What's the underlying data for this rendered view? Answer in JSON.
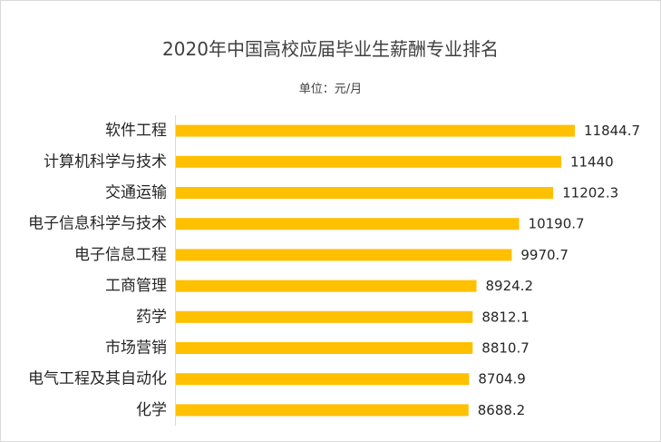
{
  "chart_data": {
    "type": "bar",
    "orientation": "horizontal",
    "title": "2020年中国高校应届毕业生薪酬专业排名",
    "subtitle": "单位：元/月",
    "categories": [
      "软件工程",
      "计算机科学与技术",
      "交通运输",
      "电子信息科学与技术",
      "电子信息工程",
      "工商管理",
      "药学",
      "市场营销",
      "电气工程及其自动化",
      "化学"
    ],
    "values": [
      11844.7,
      11440,
      11202.3,
      10190.7,
      9970.7,
      8924.2,
      8812.1,
      8810.7,
      8704.9,
      8688.2
    ],
    "value_labels": [
      "11844.7",
      "11440",
      "11202.3",
      "10190.7",
      "9970.7",
      "8924.2",
      "8812.1",
      "8810.7",
      "8704.9",
      "8688.2"
    ],
    "xlim": [
      0,
      13000
    ],
    "bar_color": "#FFC000",
    "grid": false,
    "legend": "none"
  }
}
